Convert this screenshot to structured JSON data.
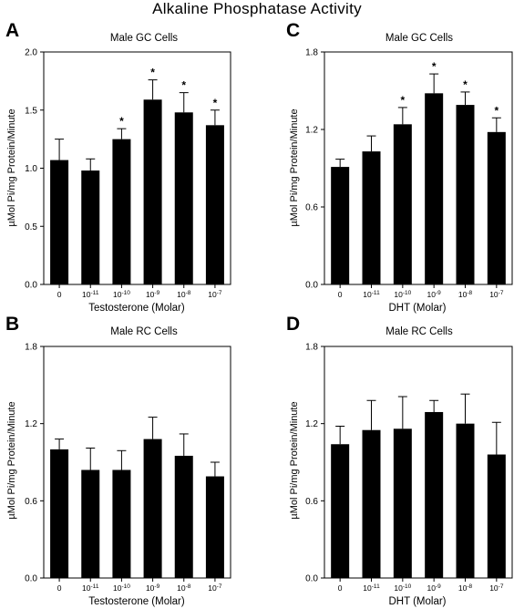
{
  "figure_title": "Alkaline Phosphatase Activity",
  "chart_data": [
    {
      "panel": "A",
      "type": "bar",
      "title": "Male GC Cells",
      "xlabel": "Testosterone (Molar)",
      "ylabel": "µMol Pi/mg Protein/Minute",
      "ylim": [
        0,
        2.0
      ],
      "yticks": [
        "0.0",
        "0.5",
        "1.0",
        "1.5",
        "2.0"
      ],
      "categories": [
        {
          "base": "0",
          "exp": ""
        },
        {
          "base": "10",
          "exp": "-11"
        },
        {
          "base": "10",
          "exp": "-10"
        },
        {
          "base": "10",
          "exp": "-9"
        },
        {
          "base": "10",
          "exp": "-8"
        },
        {
          "base": "10",
          "exp": "-7"
        }
      ],
      "values": [
        1.07,
        0.98,
        1.25,
        1.59,
        1.48,
        1.37
      ],
      "errors": [
        0.18,
        0.1,
        0.09,
        0.17,
        0.17,
        0.13
      ],
      "significant": [
        false,
        false,
        true,
        true,
        true,
        true
      ],
      "marker": "*"
    },
    {
      "panel": "B",
      "type": "bar",
      "title": "Male RC Cells",
      "xlabel": "Testosterone (Molar)",
      "ylabel": "µMol Pi/mg Protein/Minute",
      "ylim": [
        0,
        1.8
      ],
      "yticks": [
        "0.0",
        "0.6",
        "1.2",
        "1.8"
      ],
      "categories": [
        {
          "base": "0",
          "exp": ""
        },
        {
          "base": "10",
          "exp": "-11"
        },
        {
          "base": "10",
          "exp": "-10"
        },
        {
          "base": "10",
          "exp": "-9"
        },
        {
          "base": "10",
          "exp": "-8"
        },
        {
          "base": "10",
          "exp": "-7"
        }
      ],
      "values": [
        1.0,
        0.84,
        0.84,
        1.08,
        0.95,
        0.79
      ],
      "errors": [
        0.08,
        0.17,
        0.15,
        0.17,
        0.17,
        0.11
      ],
      "significant": [
        false,
        false,
        false,
        false,
        false,
        false
      ],
      "marker": "*"
    },
    {
      "panel": "C",
      "type": "bar",
      "title": "Male GC Cells",
      "xlabel": "DHT (Molar)",
      "ylabel": "µMol Pi/mg Protein/Minute",
      "ylim": [
        0,
        1.8
      ],
      "yticks": [
        "0.0",
        "0.6",
        "1.2",
        "1.8"
      ],
      "categories": [
        {
          "base": "0",
          "exp": ""
        },
        {
          "base": "10",
          "exp": "-11"
        },
        {
          "base": "10",
          "exp": "-10"
        },
        {
          "base": "10",
          "exp": "-9"
        },
        {
          "base": "10",
          "exp": "-8"
        },
        {
          "base": "10",
          "exp": "-7"
        }
      ],
      "values": [
        0.91,
        1.03,
        1.24,
        1.48,
        1.39,
        1.18
      ],
      "errors": [
        0.06,
        0.12,
        0.13,
        0.15,
        0.1,
        0.11
      ],
      "significant": [
        false,
        false,
        true,
        true,
        true,
        true
      ],
      "marker": "*"
    },
    {
      "panel": "D",
      "type": "bar",
      "title": "Male RC Cells",
      "xlabel": "DHT (Molar)",
      "ylabel": "µMol Pi/mg Protein/Minute",
      "ylim": [
        0,
        1.8
      ],
      "yticks": [
        "0.0",
        "0.6",
        "1.2",
        "1.8"
      ],
      "categories": [
        {
          "base": "0",
          "exp": ""
        },
        {
          "base": "10",
          "exp": "-11"
        },
        {
          "base": "10",
          "exp": "-10"
        },
        {
          "base": "10",
          "exp": "-9"
        },
        {
          "base": "10",
          "exp": "-8"
        },
        {
          "base": "10",
          "exp": "-7"
        }
      ],
      "values": [
        1.04,
        1.15,
        1.16,
        1.29,
        1.2,
        0.96
      ],
      "errors": [
        0.14,
        0.23,
        0.25,
        0.09,
        0.23,
        0.25
      ],
      "significant": [
        false,
        false,
        false,
        false,
        false,
        false
      ],
      "marker": "*"
    }
  ]
}
